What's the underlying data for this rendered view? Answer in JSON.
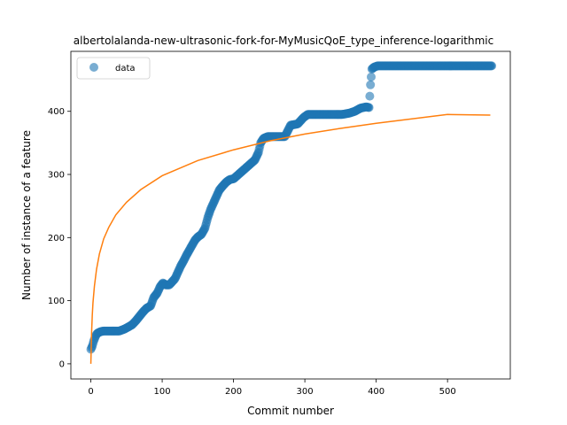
{
  "chart_data": {
    "type": "scatter",
    "title": "albertolalanda-new-ultrasonic-fork-for-MyMusicQoE_type_inference-logarithmic",
    "xlabel": "Commit number",
    "ylabel": "Number of instance of a feature",
    "xlim": [
      -28,
      588
    ],
    "ylim": [
      -24,
      495
    ],
    "xticks": [
      0,
      100,
      200,
      300,
      400,
      500
    ],
    "yticks": [
      0,
      100,
      200,
      300,
      400
    ],
    "grid": false,
    "legend_position": "upper-left",
    "series": [
      {
        "name": "data",
        "kind": "scatter",
        "color": "#1f77b4",
        "points": [
          [
            0,
            23
          ],
          [
            2,
            28
          ],
          [
            4,
            36
          ],
          [
            6,
            42
          ],
          [
            8,
            47
          ],
          [
            10,
            49
          ],
          [
            14,
            51
          ],
          [
            18,
            52
          ],
          [
            25,
            52
          ],
          [
            32,
            52
          ],
          [
            40,
            52
          ],
          [
            47,
            55
          ],
          [
            52,
            58
          ],
          [
            58,
            62
          ],
          [
            63,
            68
          ],
          [
            68,
            75
          ],
          [
            73,
            82
          ],
          [
            78,
            88
          ],
          [
            84,
            92
          ],
          [
            88,
            105
          ],
          [
            93,
            112
          ],
          [
            97,
            122
          ],
          [
            101,
            128
          ],
          [
            105,
            125
          ],
          [
            110,
            125
          ],
          [
            114,
            130
          ],
          [
            118,
            135
          ],
          [
            122,
            145
          ],
          [
            126,
            155
          ],
          [
            130,
            163
          ],
          [
            134,
            172
          ],
          [
            138,
            180
          ],
          [
            142,
            188
          ],
          [
            146,
            196
          ],
          [
            150,
            201
          ],
          [
            155,
            205
          ],
          [
            160,
            215
          ],
          [
            164,
            232
          ],
          [
            168,
            245
          ],
          [
            172,
            255
          ],
          [
            176,
            265
          ],
          [
            180,
            275
          ],
          [
            185,
            282
          ],
          [
            190,
            288
          ],
          [
            195,
            292
          ],
          [
            200,
            293
          ],
          [
            205,
            298
          ],
          [
            210,
            303
          ],
          [
            215,
            308
          ],
          [
            220,
            313
          ],
          [
            225,
            318
          ],
          [
            230,
            323
          ],
          [
            235,
            335
          ],
          [
            238,
            350
          ],
          [
            242,
            357
          ],
          [
            248,
            360
          ],
          [
            256,
            360
          ],
          [
            264,
            360
          ],
          [
            272,
            360
          ],
          [
            280,
            378
          ],
          [
            290,
            380
          ],
          [
            298,
            390
          ],
          [
            304,
            395
          ],
          [
            312,
            395
          ],
          [
            322,
            395
          ],
          [
            332,
            395
          ],
          [
            342,
            395
          ],
          [
            352,
            395
          ],
          [
            362,
            397
          ],
          [
            370,
            400
          ],
          [
            378,
            405
          ],
          [
            386,
            407
          ],
          [
            390,
            406
          ],
          [
            392,
            442
          ],
          [
            394,
            467
          ],
          [
            397,
            470
          ],
          [
            402,
            472
          ],
          [
            420,
            472
          ],
          [
            440,
            472
          ],
          [
            460,
            472
          ],
          [
            480,
            472
          ],
          [
            500,
            472
          ],
          [
            520,
            472
          ],
          [
            540,
            472
          ],
          [
            562,
            472
          ]
        ]
      },
      {
        "name": "",
        "kind": "line",
        "color": "#ff7f0e",
        "model": "logarithmic",
        "points": [
          [
            0,
            0
          ],
          [
            1,
            48
          ],
          [
            2,
            77
          ],
          [
            3,
            97
          ],
          [
            5,
            123
          ],
          [
            8,
            150
          ],
          [
            12,
            174
          ],
          [
            18,
            198
          ],
          [
            25,
            216
          ],
          [
            35,
            236
          ],
          [
            50,
            256
          ],
          [
            70,
            276
          ],
          [
            100,
            298
          ],
          [
            150,
            322
          ],
          [
            200,
            339
          ],
          [
            250,
            353
          ],
          [
            300,
            364
          ],
          [
            350,
            373
          ],
          [
            400,
            381
          ],
          [
            450,
            388
          ],
          [
            500,
            395
          ],
          [
            560,
            394
          ]
        ]
      }
    ]
  }
}
